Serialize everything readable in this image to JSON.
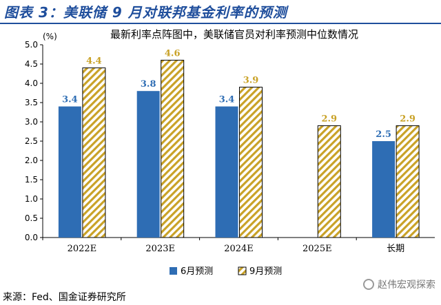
{
  "figure_title": "图表 3：美联储 9 月对联邦基金利率的预测",
  "source": "来源：Fed、国金证券研究所",
  "watermark": "赵伟宏观探索",
  "colors": {
    "title": "#1f4e9c",
    "series_solid": "#2e6db4",
    "series_hatch": "#c9a227",
    "label_solid": "#2e6db4",
    "label_hatch": "#c9a227"
  },
  "chart_data": {
    "type": "bar",
    "title": "最新利率点阵图中，美联储官员对利率预测中位数情况",
    "ylabel": "(%)",
    "categories": [
      "2022E",
      "2023E",
      "2024E",
      "2025E",
      "长期"
    ],
    "ylim": [
      0,
      5
    ],
    "yticks": [
      "0.0",
      "0.5",
      "1.0",
      "1.5",
      "2.0",
      "2.5",
      "3.0",
      "3.5",
      "4.0",
      "4.5",
      "5.0"
    ],
    "series": [
      {
        "name": "6月预测",
        "values": [
          3.4,
          3.8,
          3.4,
          null,
          2.5
        ],
        "labels": [
          "3.4",
          "3.8",
          "3.4",
          "",
          "2.5"
        ]
      },
      {
        "name": "9月预测",
        "values": [
          4.4,
          4.6,
          3.9,
          2.9,
          2.9
        ],
        "labels": [
          "4.4",
          "4.6",
          "3.9",
          "2.9",
          "2.9"
        ]
      }
    ],
    "legend": "bottom-center",
    "grid": false
  }
}
